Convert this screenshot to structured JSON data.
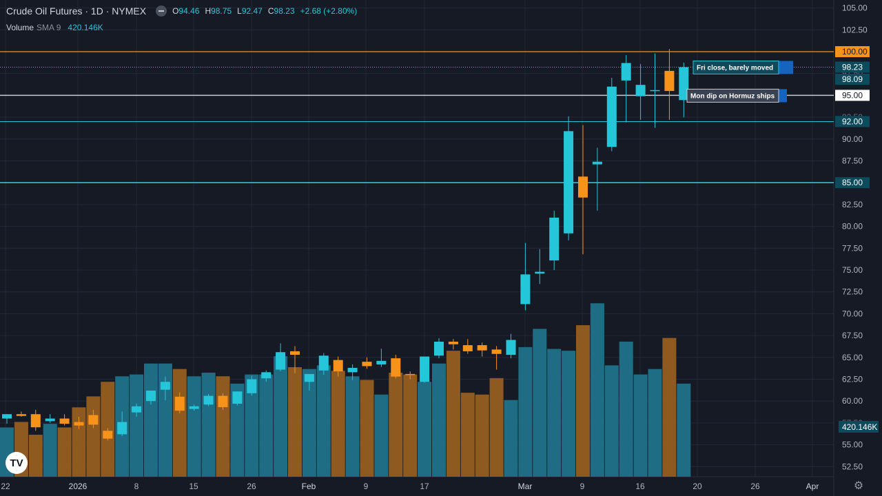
{
  "header": {
    "symbol": "Crude Oil Futures",
    "interval": "1D",
    "exchange": "NYMEX",
    "title": "Crude Oil Futures · 1D · NYMEX",
    "ohlc": {
      "o_label": "O",
      "o": "94.46",
      "h_label": "H",
      "h": "98.75",
      "l_label": "L",
      "l": "92.47",
      "c_label": "C",
      "c": "98.23",
      "change": "+2.68 (+2.80%)"
    },
    "volume_label": "Volume",
    "volume_study": "SMA 9",
    "volume_value": "420.146K"
  },
  "logo_text": "TV",
  "settings_icon": "gear-icon",
  "colors": {
    "up": "#26c6da",
    "down": "#f7931a",
    "background": "#161a25",
    "grid": "#232838",
    "axis_text": "#b2b5be",
    "resistance": "#f7931a",
    "support_cyan": "#26c6da",
    "white_line": "#c9cdd4"
  },
  "chart_data": {
    "type": "candlestick",
    "title": "Crude Oil Futures · 1D · NYMEX",
    "y_ticks": [
      "52.50",
      "55.00",
      "57.50",
      "60.00",
      "62.50",
      "65.00",
      "67.50",
      "70.00",
      "72.50",
      "75.00",
      "77.50",
      "80.00",
      "82.50",
      "85.00",
      "87.50",
      "90.00",
      "92.50",
      "95.00",
      "97.50",
      "100.00",
      "102.50",
      "105.00"
    ],
    "x_ticks": [
      "22",
      "2026",
      "8",
      "15",
      "26",
      "Feb",
      "9",
      "17",
      "Mar",
      "9",
      "16",
      "20",
      "26",
      "Apr"
    ],
    "ylim": [
      51.5,
      105.5
    ],
    "candles": [
      {
        "o": 58.0,
        "h": 58.5,
        "l": 57.4,
        "c": 58.5
      },
      {
        "o": 58.5,
        "h": 58.8,
        "l": 58.2,
        "c": 58.3
      },
      {
        "o": 58.5,
        "h": 59.0,
        "l": 56.6,
        "c": 57.0
      },
      {
        "o": 57.7,
        "h": 58.5,
        "l": 57.5,
        "c": 58.0
      },
      {
        "o": 58.0,
        "h": 58.5,
        "l": 57.2,
        "c": 57.4
      },
      {
        "o": 57.6,
        "h": 58.2,
        "l": 56.8,
        "c": 57.2
      },
      {
        "o": 58.4,
        "h": 59.0,
        "l": 56.9,
        "c": 57.3
      },
      {
        "o": 56.6,
        "h": 56.9,
        "l": 55.5,
        "c": 55.7
      },
      {
        "o": 56.2,
        "h": 58.8,
        "l": 56.0,
        "c": 57.6
      },
      {
        "o": 58.7,
        "h": 59.7,
        "l": 58.2,
        "c": 59.4
      },
      {
        "o": 60.0,
        "h": 61.1,
        "l": 59.6,
        "c": 61.2
      },
      {
        "o": 61.3,
        "h": 62.8,
        "l": 60.1,
        "c": 62.2
      },
      {
        "o": 60.5,
        "h": 61.0,
        "l": 58.6,
        "c": 58.9
      },
      {
        "o": 59.1,
        "h": 59.6,
        "l": 58.9,
        "c": 59.4
      },
      {
        "o": 59.6,
        "h": 60.8,
        "l": 59.4,
        "c": 60.6
      },
      {
        "o": 60.6,
        "h": 60.9,
        "l": 59.0,
        "c": 59.3
      },
      {
        "o": 59.7,
        "h": 61.1,
        "l": 59.5,
        "c": 61.1
      },
      {
        "o": 60.9,
        "h": 62.9,
        "l": 60.6,
        "c": 62.5
      },
      {
        "o": 62.6,
        "h": 63.5,
        "l": 62.2,
        "c": 63.3
      },
      {
        "o": 63.6,
        "h": 66.6,
        "l": 63.4,
        "c": 65.6
      },
      {
        "o": 65.7,
        "h": 66.3,
        "l": 63.2,
        "c": 65.3
      },
      {
        "o": 62.2,
        "h": 63.0,
        "l": 61.2,
        "c": 63.1
      },
      {
        "o": 63.5,
        "h": 65.5,
        "l": 63.0,
        "c": 65.2
      },
      {
        "o": 64.7,
        "h": 65.1,
        "l": 62.8,
        "c": 63.4
      },
      {
        "o": 63.3,
        "h": 64.2,
        "l": 62.4,
        "c": 63.8
      },
      {
        "o": 64.5,
        "h": 65.0,
        "l": 63.7,
        "c": 64.0
      },
      {
        "o": 64.2,
        "h": 66.0,
        "l": 63.9,
        "c": 64.6
      },
      {
        "o": 64.9,
        "h": 65.3,
        "l": 62.6,
        "c": 62.8
      },
      {
        "o": 63.1,
        "h": 63.4,
        "l": 62.5,
        "c": 63.0
      },
      {
        "o": 62.2,
        "h": 65.1,
        "l": 62.1,
        "c": 65.1
      },
      {
        "o": 65.2,
        "h": 67.2,
        "l": 64.9,
        "c": 66.8
      },
      {
        "o": 66.8,
        "h": 67.1,
        "l": 65.9,
        "c": 66.5
      },
      {
        "o": 66.4,
        "h": 67.1,
        "l": 65.4,
        "c": 65.7
      },
      {
        "o": 66.4,
        "h": 66.7,
        "l": 65.1,
        "c": 65.8
      },
      {
        "o": 65.9,
        "h": 66.3,
        "l": 63.6,
        "c": 65.4
      },
      {
        "o": 65.3,
        "h": 67.7,
        "l": 64.9,
        "c": 67.0
      },
      {
        "o": 71.1,
        "h": 78.1,
        "l": 70.4,
        "c": 74.5
      },
      {
        "o": 74.6,
        "h": 77.4,
        "l": 73.4,
        "c": 74.8
      },
      {
        "o": 76.1,
        "h": 81.8,
        "l": 75.0,
        "c": 81.0
      },
      {
        "o": 79.2,
        "h": 92.6,
        "l": 78.4,
        "c": 90.9
      },
      {
        "o": 85.7,
        "h": 91.6,
        "l": 76.8,
        "c": 83.3
      },
      {
        "o": 87.1,
        "h": 89.0,
        "l": 81.8,
        "c": 87.4
      },
      {
        "o": 89.1,
        "h": 97.0,
        "l": 88.6,
        "c": 96.0
      },
      {
        "o": 96.7,
        "h": 99.6,
        "l": 91.9,
        "c": 98.7
      },
      {
        "o": 94.9,
        "h": 98.6,
        "l": 92.2,
        "c": 96.2
      },
      {
        "o": 95.5,
        "h": 99.8,
        "l": 91.3,
        "c": 95.6
      },
      {
        "o": 97.8,
        "h": 100.3,
        "l": 92.2,
        "c": 95.5
      },
      {
        "o": 94.46,
        "h": 98.75,
        "l": 92.47,
        "c": 98.23
      }
    ],
    "volume_max": 65,
    "volume": [
      27,
      30,
      23,
      29,
      27,
      38,
      44,
      52,
      55,
      56,
      62,
      62,
      59,
      55,
      57,
      55,
      51,
      56,
      56,
      66,
      60,
      59,
      61,
      58,
      55,
      53,
      45,
      57,
      56,
      52,
      62,
      69,
      46,
      45,
      54,
      42,
      71,
      81,
      70,
      69,
      83,
      95,
      61,
      74,
      56,
      59,
      76,
      51
    ],
    "horizontal_lines": [
      {
        "price": 100.0,
        "label": "100.00",
        "kind": "resistance"
      },
      {
        "price": 98.23,
        "label": "98.23",
        "kind": "last-price"
      },
      {
        "price": 95.0,
        "label": "95.00",
        "kind": "white-level"
      },
      {
        "price": 92.0,
        "label": "92.00",
        "kind": "cyan-level"
      },
      {
        "price": 85.0,
        "label": "85.00",
        "kind": "cyan-level-thick"
      }
    ],
    "extra_price_label": "98.09",
    "volume_axis_label": "420.146K",
    "annotations": [
      {
        "text": "Fri close, barely moved",
        "price": 98.23
      },
      {
        "text": "Mon dip on Hormuz ships",
        "price": 95.0
      }
    ],
    "grid": true
  }
}
